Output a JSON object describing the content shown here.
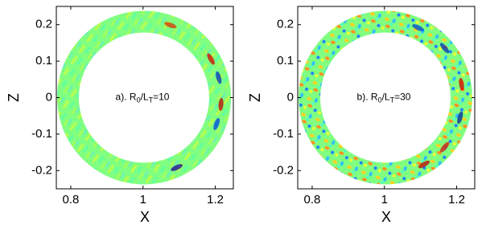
{
  "chart_data": [
    {
      "type": "field",
      "xlabel": "X",
      "ylabel": "Z",
      "annotation": [
        "a). R",
        "0",
        "/L",
        "T",
        "=10"
      ],
      "xlim": [
        0.76,
        1.25
      ],
      "ylim": [
        -0.25,
        0.25
      ],
      "xticks": [
        0.8,
        1,
        1.2
      ],
      "yticks": [
        -0.2,
        -0.1,
        0,
        0.1,
        0.2
      ]
    },
    {
      "type": "field",
      "xlabel": "X",
      "ylabel": "Z",
      "annotation": [
        "b). R",
        "0",
        "/L",
        "T",
        "=30"
      ],
      "xlim": [
        0.76,
        1.25
      ],
      "ylim": [
        -0.25,
        0.25
      ],
      "xticks": [
        0.8,
        1,
        1.2
      ],
      "yticks": [
        -0.2,
        -0.1,
        0,
        0.1,
        0.2
      ]
    }
  ]
}
